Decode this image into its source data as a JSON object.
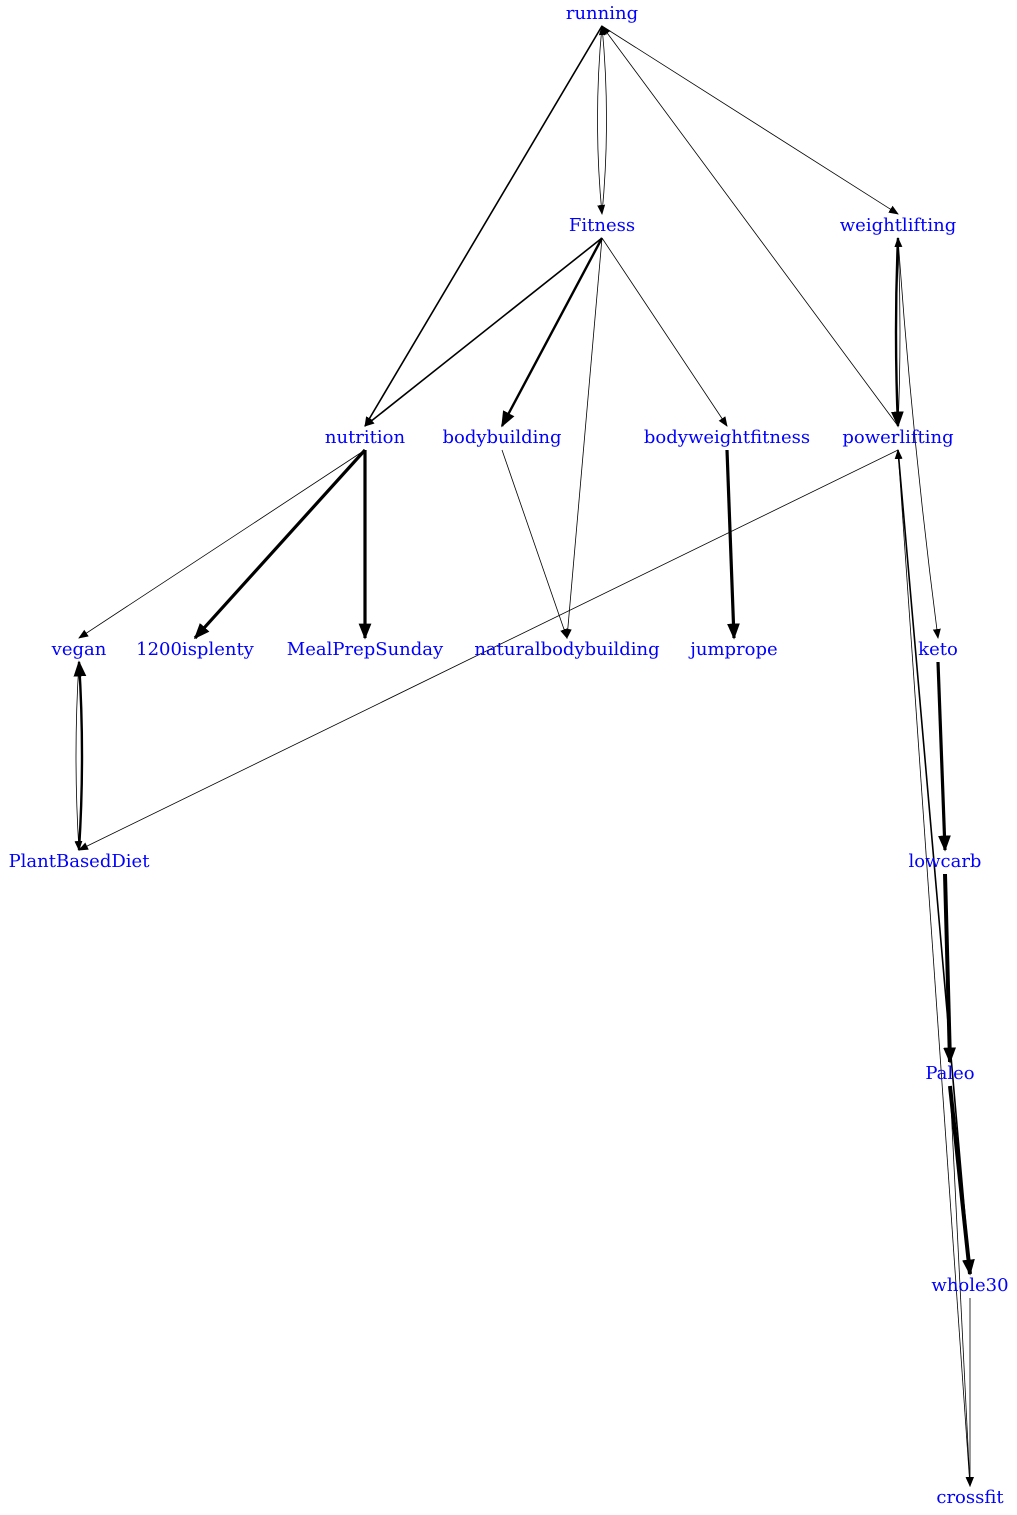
{
  "nodes": [
    {
      "id": "running",
      "label": "running"
    },
    {
      "id": "Fitness",
      "label": "Fitness"
    },
    {
      "id": "weightlifting",
      "label": "weightlifting"
    },
    {
      "id": "nutrition",
      "label": "nutrition"
    },
    {
      "id": "bodybuilding",
      "label": "bodybuilding"
    },
    {
      "id": "bodyweightfitness",
      "label": "bodyweightfitness"
    },
    {
      "id": "powerlifting",
      "label": "powerlifting"
    },
    {
      "id": "vegan",
      "label": "vegan"
    },
    {
      "id": "1200isplenty",
      "label": "1200isplenty"
    },
    {
      "id": "MealPrepSunday",
      "label": "MealPrepSunday"
    },
    {
      "id": "naturalbodybuilding",
      "label": "naturalbodybuilding"
    },
    {
      "id": "jumprope",
      "label": "jumprope"
    },
    {
      "id": "keto",
      "label": "keto"
    },
    {
      "id": "PlantBasedDiet",
      "label": "PlantBasedDiet"
    },
    {
      "id": "lowcarb",
      "label": "lowcarb"
    },
    {
      "id": "Paleo",
      "label": "Paleo"
    },
    {
      "id": "whole30",
      "label": "whole30"
    },
    {
      "id": "crossfit",
      "label": "crossfit"
    }
  ],
  "edges": [
    {
      "from": "running",
      "to": "Fitness",
      "weight": 1
    },
    {
      "from": "Fitness",
      "to": "running",
      "weight": 1
    },
    {
      "from": "running",
      "to": "nutrition",
      "weight": 2
    },
    {
      "from": "running",
      "to": "weightlifting",
      "weight": 1
    },
    {
      "from": "powerlifting",
      "to": "running",
      "weight": 1
    },
    {
      "from": "Fitness",
      "to": "nutrition",
      "weight": 2
    },
    {
      "from": "Fitness",
      "to": "bodybuilding",
      "weight": 3
    },
    {
      "from": "Fitness",
      "to": "naturalbodybuilding",
      "weight": 1
    },
    {
      "from": "Fitness",
      "to": "bodyweightfitness",
      "weight": 1
    },
    {
      "from": "weightlifting",
      "to": "powerlifting",
      "weight": 3
    },
    {
      "from": "powerlifting",
      "to": "weightlifting",
      "weight": 1
    },
    {
      "from": "weightlifting",
      "to": "keto",
      "weight": 1
    },
    {
      "from": "nutrition",
      "to": "vegan",
      "weight": 1
    },
    {
      "from": "nutrition",
      "to": "1200isplenty",
      "weight": 4
    },
    {
      "from": "nutrition",
      "to": "MealPrepSunday",
      "weight": 4
    },
    {
      "from": "bodybuilding",
      "to": "naturalbodybuilding",
      "weight": 1
    },
    {
      "from": "bodyweightfitness",
      "to": "jumprope",
      "weight": 4
    },
    {
      "from": "powerlifting",
      "to": "PlantBasedDiet",
      "weight": 1
    },
    {
      "from": "powerlifting",
      "to": "whole30",
      "weight": 2
    },
    {
      "from": "crossfit",
      "to": "powerlifting",
      "weight": 1
    },
    {
      "from": "vegan",
      "to": "PlantBasedDiet",
      "weight": 1
    },
    {
      "from": "PlantBasedDiet",
      "to": "vegan",
      "weight": 3
    },
    {
      "from": "keto",
      "to": "lowcarb",
      "weight": 4
    },
    {
      "from": "lowcarb",
      "to": "Paleo",
      "weight": 5
    },
    {
      "from": "Paleo",
      "to": "whole30",
      "weight": 5
    },
    {
      "from": "Paleo",
      "to": "crossfit",
      "weight": 1
    },
    {
      "from": "whole30",
      "to": "crossfit",
      "weight": 1
    }
  ]
}
